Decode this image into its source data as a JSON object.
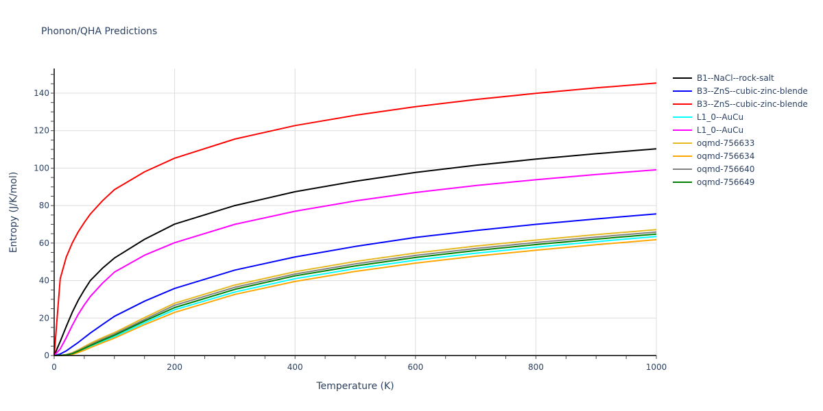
{
  "chart_data": {
    "type": "line",
    "title": "Phonon/QHA Predictions",
    "xlabel": "Temperature (K)",
    "ylabel": "Entropy (J/K/mol)",
    "xlim": [
      0,
      1000
    ],
    "ylim": [
      0,
      153
    ],
    "x_ticks": [
      0,
      200,
      400,
      600,
      800,
      1000
    ],
    "y_ticks": [
      0,
      20,
      40,
      60,
      80,
      100,
      120,
      140
    ],
    "x_minor_step": 50,
    "y_minor_step": 5,
    "grid": true,
    "legend_position": "right",
    "x": [
      0,
      10,
      20,
      30,
      40,
      50,
      60,
      80,
      100,
      150,
      200,
      300,
      400,
      500,
      600,
      700,
      800,
      900,
      1000
    ],
    "series": [
      {
        "name": "B1--NaCl--rock-salt",
        "color": "#000000",
        "values": [
          0,
          7.5,
          15.5,
          23,
          29.5,
          35,
          40,
          46.5,
          52,
          62,
          70.1,
          80,
          87.4,
          93.0,
          97.7,
          101.5,
          104.8,
          107.7,
          110.3
        ]
      },
      {
        "name": "B3--ZnS--cubic-zinc-blende",
        "color": "#0000ff",
        "values": [
          0,
          0.8,
          2.5,
          4.7,
          7,
          9.5,
          12,
          16.5,
          20.9,
          29,
          35.8,
          45.6,
          52.6,
          58.2,
          63.0,
          66.7,
          70.0,
          72.9,
          75.6
        ]
      },
      {
        "name": "B3--ZnS--cubic-zinc-blende",
        "color": "#ff0000",
        "values": [
          0,
          41,
          52.5,
          60,
          66,
          71,
          75.5,
          82.5,
          88.5,
          98,
          105.3,
          115.5,
          122.7,
          128.2,
          132.8,
          136.6,
          139.9,
          142.8,
          145.4
        ]
      },
      {
        "name": "L1_0--AuCu",
        "color": "#00ffff",
        "values": [
          0,
          0,
          0.3,
          0.9,
          2.0,
          3.3,
          4.7,
          7.4,
          10.0,
          17.4,
          24.4,
          33.9,
          41.0,
          46.4,
          50.9,
          54.6,
          57.8,
          60.8,
          63.5
        ]
      },
      {
        "name": "L1_0--AuCu",
        "color": "#ff00ff",
        "values": [
          0,
          3.5,
          9.5,
          16,
          22,
          27,
          31.5,
          38.5,
          44.5,
          53.5,
          60.2,
          70,
          77.0,
          82.5,
          87.0,
          90.7,
          93.8,
          96.6,
          99.1
        ]
      },
      {
        "name": "oqmd-756633",
        "color": "#e6b820",
        "values": [
          0,
          0.1,
          0.5,
          1.5,
          3,
          4.8,
          6.5,
          9.5,
          12.2,
          20.2,
          27.9,
          37.6,
          44.7,
          50.2,
          54.7,
          58.4,
          61.6,
          64.5,
          67.2
        ]
      },
      {
        "name": "oqmd-756634",
        "color": "#ffa500",
        "values": [
          0,
          0,
          0.2,
          0.6,
          1.6,
          2.8,
          4.2,
          6.8,
          9.3,
          16.5,
          23.0,
          32.6,
          39.5,
          44.9,
          49.3,
          53.0,
          56.2,
          59.1,
          61.8
        ]
      },
      {
        "name": "oqmd-756640",
        "color": "#808080",
        "values": [
          0,
          0.1,
          0.4,
          1.2,
          2.6,
          4.2,
          5.8,
          8.7,
          11.4,
          19.2,
          26.8,
          36.4,
          43.5,
          48.9,
          53.4,
          57.1,
          60.3,
          63.2,
          65.9
        ]
      },
      {
        "name": "oqmd-756649",
        "color": "#008000",
        "values": [
          0,
          0.1,
          0.3,
          1.0,
          2.3,
          3.8,
          5.3,
          8.1,
          10.8,
          18.4,
          25.6,
          35.3,
          42.5,
          47.8,
          52.3,
          56.0,
          59.2,
          62.1,
          64.8
        ]
      }
    ]
  }
}
